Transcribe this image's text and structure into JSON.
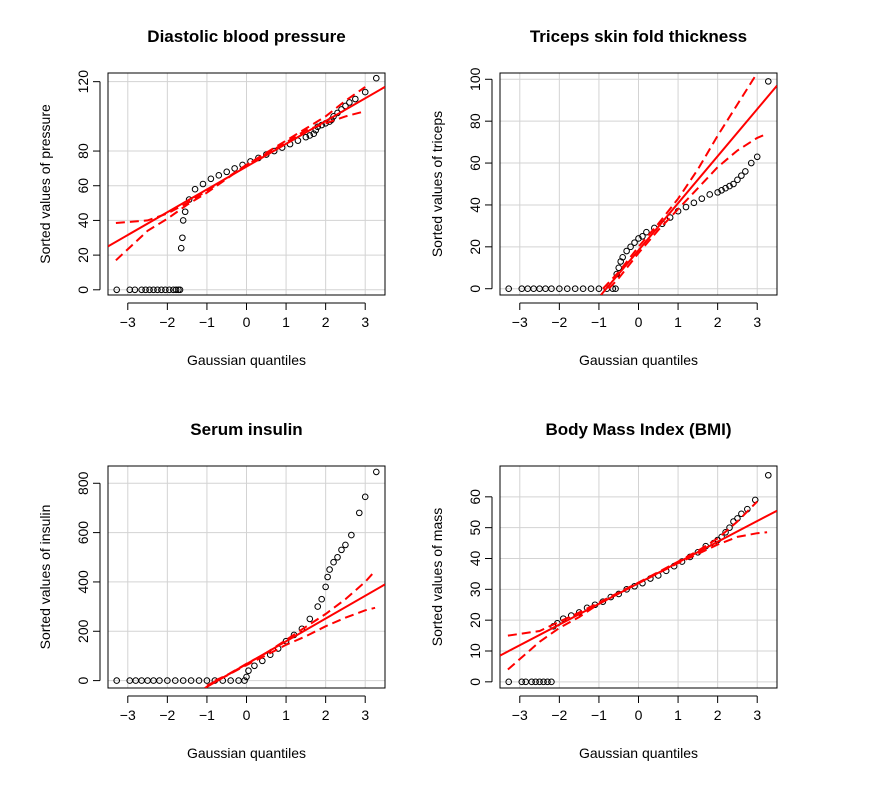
{
  "chart_data": [
    {
      "type": "scatter",
      "title": "Diastolic blood pressure",
      "xlabel": "Gaussian quantiles",
      "ylabel": "Sorted values of pressure",
      "xlim": [
        -3.5,
        3.5
      ],
      "ylim": [
        -3,
        125
      ],
      "xticks": [
        -3,
        -2,
        -1,
        0,
        1,
        2,
        3
      ],
      "yticks": [
        0,
        20,
        40,
        60,
        80,
        120
      ],
      "grid": true,
      "colors": {
        "points": "#000000",
        "fit": "#ff0000"
      },
      "series": [
        {
          "kind": "points",
          "x": [
            -3.28,
            -2.95,
            -2.82,
            -2.65,
            -2.55,
            -2.45,
            -2.35,
            -2.25,
            -2.15,
            -2.05,
            -1.95,
            -1.85,
            -1.78,
            -1.72,
            -1.68,
            -1.65,
            -1.62,
            -1.6,
            -1.55,
            -1.45,
            -1.3,
            -1.1,
            -0.9,
            -0.7,
            -0.5,
            -0.3,
            -0.1,
            0.1,
            0.3,
            0.5,
            0.7,
            0.9,
            1.1,
            1.3,
            1.5,
            1.6,
            1.7,
            1.75,
            1.8,
            1.9,
            2.0,
            2.1,
            2.15,
            2.2,
            2.3,
            2.4,
            2.5,
            2.6,
            2.75,
            3.0,
            3.28
          ],
          "y": [
            0,
            0,
            0,
            0,
            0,
            0,
            0,
            0,
            0,
            0,
            0,
            0,
            0,
            0,
            0,
            24,
            30,
            40,
            45,
            52,
            58,
            61,
            64,
            66,
            68,
            70,
            72,
            74,
            76,
            78,
            80,
            82,
            84,
            86,
            88,
            89,
            90,
            92,
            94,
            95,
            96,
            97,
            98,
            100,
            102,
            104,
            106,
            108,
            110,
            114,
            122
          ]
        },
        {
          "kind": "fit",
          "x": [
            -3.5,
            3.5
          ],
          "y": [
            25,
            117
          ]
        },
        {
          "kind": "band_upper",
          "x": [
            -3.3,
            -2.5,
            -2.0,
            -1.5,
            -1.0,
            0,
            1.0,
            1.5,
            2.0,
            2.5,
            3.0
          ],
          "y": [
            38.5,
            40,
            44,
            50,
            57,
            72,
            86,
            93,
            100,
            109,
            117
          ]
        },
        {
          "kind": "band_lower",
          "x": [
            -3.3,
            -2.5,
            -2.0,
            -1.5,
            -1.0,
            0,
            1.0,
            1.5,
            2.0,
            2.5,
            3.0
          ],
          "y": [
            17,
            34,
            41,
            49,
            56,
            72,
            85,
            92,
            96,
            100,
            103
          ]
        }
      ]
    },
    {
      "type": "scatter",
      "title": "Triceps skin fold thickness",
      "xlabel": "Gaussian quantiles",
      "ylabel": "Sorted values of triceps",
      "xlim": [
        -3.5,
        3.5
      ],
      "ylim": [
        -3,
        103
      ],
      "xticks": [
        -3,
        -2,
        -1,
        0,
        1,
        2,
        3
      ],
      "yticks": [
        0,
        20,
        40,
        60,
        80,
        100
      ],
      "grid": true,
      "colors": {
        "points": "#000000",
        "fit": "#ff0000"
      },
      "series": [
        {
          "kind": "points",
          "x": [
            -3.28,
            -2.95,
            -2.8,
            -2.65,
            -2.5,
            -2.35,
            -2.2,
            -2.0,
            -1.8,
            -1.6,
            -1.4,
            -1.2,
            -1.0,
            -0.8,
            -0.65,
            -0.58,
            -0.55,
            -0.5,
            -0.45,
            -0.4,
            -0.3,
            -0.2,
            -0.1,
            0,
            0.1,
            0.2,
            0.4,
            0.6,
            0.8,
            1.0,
            1.2,
            1.4,
            1.6,
            1.8,
            2.0,
            2.1,
            2.2,
            2.3,
            2.4,
            2.5,
            2.6,
            2.7,
            2.85,
            3.0,
            3.28
          ],
          "y": [
            0,
            0,
            0,
            0,
            0,
            0,
            0,
            0,
            0,
            0,
            0,
            0,
            0,
            0,
            0,
            0,
            7,
            10,
            13,
            15,
            18,
            20,
            22,
            24,
            25,
            27,
            29,
            31,
            34,
            37,
            39,
            41,
            43,
            45,
            46,
            47,
            48,
            49,
            50,
            52,
            54,
            56,
            60,
            63,
            99
          ]
        },
        {
          "kind": "fit",
          "x": [
            -0.95,
            3.5
          ],
          "y": [
            -3,
            97
          ]
        },
        {
          "kind": "band_upper",
          "x": [
            -0.9,
            -0.5,
            0,
            0.5,
            1.0,
            1.5,
            2.0,
            2.5,
            3.0
          ],
          "y": [
            0,
            8,
            20,
            31,
            43,
            57,
            73,
            88,
            103
          ]
        },
        {
          "kind": "band_lower",
          "x": [
            -0.75,
            -0.5,
            0,
            0.5,
            1.0,
            1.5,
            2.0,
            2.5,
            3.0,
            3.25
          ],
          "y": [
            0,
            5,
            17,
            28,
            38,
            48,
            58,
            66,
            72,
            74
          ]
        }
      ]
    },
    {
      "type": "scatter",
      "title": "Serum insulin",
      "xlabel": "Gaussian quantiles",
      "ylabel": "Sorted values of insulin",
      "xlim": [
        -3.5,
        3.5
      ],
      "ylim": [
        -30,
        870
      ],
      "xticks": [
        -3,
        -2,
        -1,
        0,
        1,
        2,
        3
      ],
      "yticks": [
        0,
        200,
        400,
        600,
        800
      ],
      "grid": true,
      "colors": {
        "points": "#000000",
        "fit": "#ff0000"
      },
      "series": [
        {
          "kind": "points",
          "x": [
            -3.28,
            -2.95,
            -2.8,
            -2.65,
            -2.5,
            -2.35,
            -2.2,
            -2.0,
            -1.8,
            -1.6,
            -1.4,
            -1.2,
            -1.0,
            -0.8,
            -0.6,
            -0.4,
            -0.2,
            -0.05,
            0.0,
            0.05,
            0.2,
            0.4,
            0.6,
            0.8,
            1.0,
            1.2,
            1.4,
            1.6,
            1.8,
            1.9,
            2.0,
            2.05,
            2.1,
            2.2,
            2.3,
            2.4,
            2.5,
            2.65,
            2.85,
            3.0,
            3.28
          ],
          "y": [
            0,
            0,
            0,
            0,
            0,
            0,
            0,
            0,
            0,
            0,
            0,
            0,
            0,
            0,
            0,
            0,
            0,
            0,
            15,
            40,
            60,
            80,
            105,
            130,
            160,
            185,
            210,
            250,
            300,
            330,
            380,
            420,
            450,
            480,
            500,
            530,
            550,
            590,
            680,
            745,
            846
          ]
        },
        {
          "kind": "fit",
          "x": [
            -1.05,
            3.5
          ],
          "y": [
            -30,
            390
          ]
        },
        {
          "kind": "band_upper",
          "x": [
            -0.8,
            -0.5,
            0,
            0.5,
            1.0,
            1.5,
            2.0,
            2.5,
            3.0,
            3.25
          ],
          "y": [
            0,
            22,
            68,
            112,
            165,
            218,
            270,
            330,
            400,
            445
          ]
        },
        {
          "kind": "band_lower",
          "x": [
            -1.0,
            -0.5,
            0,
            0.5,
            1.0,
            1.5,
            2.0,
            2.5,
            3.0,
            3.25
          ],
          "y": [
            -20,
            20,
            63,
            103,
            145,
            180,
            220,
            255,
            285,
            295
          ]
        }
      ]
    },
    {
      "type": "scatter",
      "title": "Body Mass Index (BMI)",
      "xlabel": "Gaussian quantiles",
      "ylabel": "Sorted values of mass",
      "xlim": [
        -3.5,
        3.5
      ],
      "ylim": [
        -2,
        70
      ],
      "xticks": [
        -3,
        -2,
        -1,
        0,
        1,
        2,
        3
      ],
      "yticks": [
        0,
        10,
        20,
        30,
        40,
        50,
        60
      ],
      "grid": true,
      "colors": {
        "points": "#000000",
        "fit": "#ff0000"
      },
      "series": [
        {
          "kind": "points",
          "x": [
            -3.28,
            -2.95,
            -2.85,
            -2.7,
            -2.6,
            -2.5,
            -2.4,
            -2.3,
            -2.2,
            -2.15,
            -2.05,
            -1.9,
            -1.7,
            -1.5,
            -1.3,
            -1.1,
            -0.9,
            -0.7,
            -0.5,
            -0.3,
            -0.1,
            0.1,
            0.3,
            0.5,
            0.7,
            0.9,
            1.1,
            1.3,
            1.5,
            1.7,
            1.9,
            2.0,
            2.1,
            2.2,
            2.3,
            2.4,
            2.5,
            2.6,
            2.75,
            2.95,
            3.28
          ],
          "y": [
            0,
            0,
            0,
            0,
            0,
            0,
            0,
            0,
            0,
            18,
            19,
            20.5,
            21.5,
            22.5,
            24,
            25,
            26,
            27.5,
            28.5,
            30,
            31,
            32,
            33.5,
            34.5,
            36,
            37.5,
            39,
            40.5,
            42,
            44,
            45,
            46,
            47,
            48.5,
            50,
            52,
            53,
            54.5,
            56,
            59,
            67
          ]
        },
        {
          "kind": "fit",
          "x": [
            -3.5,
            3.5
          ],
          "y": [
            8.5,
            55.5
          ]
        },
        {
          "kind": "band_upper",
          "x": [
            -3.3,
            -2.5,
            -2.0,
            -1.5,
            -1.0,
            0,
            1.0,
            1.5,
            2.0,
            2.5,
            3.0
          ],
          "y": [
            15,
            16.5,
            19.5,
            22.5,
            25.7,
            32.2,
            39,
            42.5,
            46.5,
            52,
            58.5
          ]
        },
        {
          "kind": "band_lower",
          "x": [
            -3.3,
            -2.5,
            -2.0,
            -1.5,
            -1.0,
            0,
            1.0,
            1.5,
            2.0,
            2.5,
            3.0,
            3.25
          ],
          "y": [
            4,
            13,
            17.5,
            21,
            25.3,
            32,
            38.5,
            41.5,
            44.5,
            47,
            48.2,
            48.5
          ]
        }
      ]
    }
  ]
}
